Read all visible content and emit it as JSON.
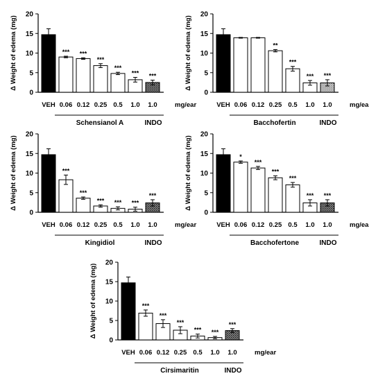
{
  "chart_data": [
    {
      "type": "bar",
      "ylabel": "Δ Weight of edema  (mg)",
      "ylim": [
        0,
        20
      ],
      "yticks": [
        0,
        5,
        10,
        15,
        20
      ],
      "categories": [
        "VEH",
        "0.06",
        "0.12",
        "0.25",
        "0.5",
        "1.0",
        "1.0"
      ],
      "values": [
        14.7,
        9.0,
        8.6,
        6.8,
        4.8,
        3.2,
        2.5
      ],
      "errors": [
        1.5,
        0.2,
        0.2,
        0.5,
        0.3,
        0.6,
        0.6
      ],
      "significance": [
        "",
        "***",
        "***",
        "***",
        "***",
        "***",
        "***"
      ],
      "fills": [
        "black",
        "white",
        "white",
        "white",
        "white",
        "white",
        "dots"
      ],
      "unit_label": "mg/ear",
      "group_label": "Schensianol A",
      "control_label": "INDO"
    },
    {
      "type": "bar",
      "ylabel": "Δ Weight of edema  (mg)",
      "ylim": [
        0,
        20
      ],
      "yticks": [
        0,
        5,
        10,
        15,
        20
      ],
      "categories": [
        "VEH",
        "0.06",
        "0.12",
        "0.25",
        "0.5",
        "1.0",
        "1.0"
      ],
      "values": [
        14.7,
        13.9,
        13.9,
        10.6,
        6.0,
        2.4,
        2.4
      ],
      "errors": [
        1.5,
        0.1,
        0.1,
        0.3,
        0.6,
        0.6,
        0.8
      ],
      "significance": [
        "",
        "",
        "",
        "**",
        "***",
        "***",
        "***"
      ],
      "fills": [
        "black",
        "white",
        "white",
        "white",
        "white",
        "white",
        "light-dots"
      ],
      "unit_label": "mg/ear",
      "group_label": "Bacchofertin",
      "control_label": "INDO"
    },
    {
      "type": "bar",
      "ylabel": "Δ Weight of edema  (mg)",
      "ylim": [
        0,
        20
      ],
      "yticks": [
        0,
        5,
        10,
        15,
        20
      ],
      "categories": [
        "VEH",
        "0.06",
        "0.12",
        "0.25",
        "0.5",
        "1.0",
        "1.0"
      ],
      "values": [
        14.7,
        8.3,
        3.6,
        1.6,
        1.0,
        0.8,
        2.4
      ],
      "errors": [
        1.5,
        1.2,
        0.3,
        0.3,
        0.4,
        0.5,
        0.8
      ],
      "significance": [
        "",
        "***",
        "***",
        "***",
        "***",
        "***",
        "***"
      ],
      "fills": [
        "black",
        "white",
        "white",
        "white",
        "white",
        "white",
        "dots"
      ],
      "unit_label": "mg/ear",
      "group_label": "Kingidiol",
      "control_label": "INDO"
    },
    {
      "type": "bar",
      "ylabel": "Δ Weight of edema  (mg)",
      "ylim": [
        0,
        20
      ],
      "yticks": [
        0,
        5,
        10,
        15,
        20
      ],
      "categories": [
        "VEH",
        "0.06",
        "0.12",
        "0.25",
        "0.5",
        "1.0",
        "1.0"
      ],
      "values": [
        14.7,
        12.8,
        11.3,
        8.8,
        7.0,
        2.4,
        2.4
      ],
      "errors": [
        1.5,
        0.3,
        0.4,
        0.5,
        0.6,
        0.8,
        0.8
      ],
      "significance": [
        "",
        "*",
        "***",
        "***",
        "***",
        "***",
        "***"
      ],
      "fills": [
        "black",
        "white",
        "white",
        "white",
        "white",
        "white",
        "dots"
      ],
      "unit_label": "mg/ear",
      "group_label": "Bacchofertone",
      "control_label": "INDO"
    },
    {
      "type": "bar",
      "ylabel": "Δ Weight of edema  (mg)",
      "ylim": [
        0,
        20
      ],
      "yticks": [
        0,
        5,
        10,
        15,
        20
      ],
      "categories": [
        "VEH",
        "0.06",
        "0.12",
        "0.25",
        "0.5",
        "1.0",
        "1.0"
      ],
      "values": [
        14.7,
        6.9,
        4.2,
        2.5,
        1.0,
        0.6,
        2.4
      ],
      "errors": [
        1.5,
        0.8,
        1.0,
        0.9,
        0.5,
        0.3,
        0.5
      ],
      "significance": [
        "",
        "***",
        "***",
        "***",
        "***",
        "***",
        "***"
      ],
      "fills": [
        "black",
        "white",
        "white",
        "white",
        "white",
        "white",
        "dots"
      ],
      "unit_label": "mg/ear",
      "group_label": "Cirsimaritin",
      "control_label": "INDO"
    }
  ]
}
